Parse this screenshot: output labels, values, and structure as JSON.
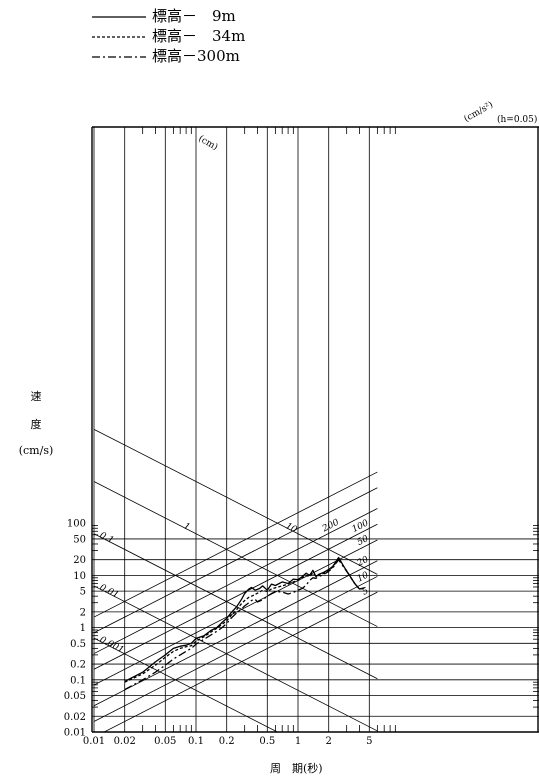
{
  "legend": [
    {
      "label": "標高－　9m",
      "dash": ""
    },
    {
      "label": "標高－　34m",
      "dash": "3,2"
    },
    {
      "label": "標高－300m",
      "dash": "8,3,2,3"
    }
  ],
  "axis": {
    "ylabel_lines": [
      "速",
      "度",
      "(cm/s)"
    ],
    "xlabel": "周　期(秒)",
    "x_ticks": [
      {
        "v": 0.01,
        "t": "0.01"
      },
      {
        "v": 0.02,
        "t": "0.02"
      },
      {
        "v": 0.05,
        "t": "0.05"
      },
      {
        "v": 0.1,
        "t": "0.1"
      },
      {
        "v": 0.2,
        "t": "0.2"
      },
      {
        "v": 0.5,
        "t": "0.5"
      },
      {
        "v": 1,
        "t": "1"
      },
      {
        "v": 2,
        "t": "2"
      },
      {
        "v": 5,
        "t": "5"
      }
    ],
    "y_ticks": [
      {
        "v": 0.01,
        "t": "0.01"
      },
      {
        "v": 0.02,
        "t": "0.02"
      },
      {
        "v": 0.05,
        "t": "0.05"
      },
      {
        "v": 0.1,
        "t": "0.1"
      },
      {
        "v": 0.2,
        "t": "0.2"
      },
      {
        "v": 0.5,
        "t": "0.5"
      },
      {
        "v": 1,
        "t": "1"
      },
      {
        "v": 2,
        "t": "2"
      },
      {
        "v": 5,
        "t": "5"
      },
      {
        "v": 10,
        "t": "10"
      },
      {
        "v": 20,
        "t": "20"
      },
      {
        "v": 50,
        "t": "50"
      },
      {
        "v": 100,
        "t": "100"
      }
    ]
  },
  "tripartite": {
    "disp_unit": "(cm)",
    "acc_unit": "(cm/s²)",
    "damping": "(h=0.05)",
    "disp_lines": [
      {
        "v": 10,
        "t": "10"
      },
      {
        "v": 1,
        "t": "1"
      },
      {
        "v": 0.1,
        "t": "0.1"
      },
      {
        "v": 0.01,
        "t": "0.01"
      },
      {
        "v": 0.001,
        "t": "0.001"
      }
    ],
    "acc_lines": [
      {
        "v": 1000,
        "t": ""
      },
      {
        "v": 500,
        "t": ""
      },
      {
        "v": 200,
        "t": "200"
      },
      {
        "v": 100,
        "t": "100"
      },
      {
        "v": 50,
        "t": "50"
      },
      {
        "v": 20,
        "t": "20"
      },
      {
        "v": 10,
        "t": "10"
      },
      {
        "v": 5,
        "t": "5"
      }
    ]
  },
  "chart_data": {
    "type": "line",
    "xlabel": "周　期(秒)",
    "ylabel": "速度 (cm/s)",
    "x_scale": "log",
    "y_scale": "log",
    "xlim": [
      0.01,
      6
    ],
    "ylim": [
      0.01,
      100
    ],
    "grid": true,
    "legend_position": "top-left",
    "series": [
      {
        "name": "標高－　9m",
        "points": [
          [
            0.02,
            0.093
          ],
          [
            0.03,
            0.14
          ],
          [
            0.04,
            0.22
          ],
          [
            0.05,
            0.3
          ],
          [
            0.06,
            0.4
          ],
          [
            0.07,
            0.44
          ],
          [
            0.08,
            0.46
          ],
          [
            0.09,
            0.5
          ],
          [
            0.1,
            0.62
          ],
          [
            0.12,
            0.7
          ],
          [
            0.14,
            0.88
          ],
          [
            0.16,
            1.0
          ],
          [
            0.18,
            1.25
          ],
          [
            0.2,
            1.5
          ],
          [
            0.22,
            1.9
          ],
          [
            0.25,
            2.5
          ],
          [
            0.28,
            3.5
          ],
          [
            0.3,
            4.5
          ],
          [
            0.33,
            5.5
          ],
          [
            0.35,
            5.9
          ],
          [
            0.38,
            5.2
          ],
          [
            0.42,
            5.6
          ],
          [
            0.45,
            6.3
          ],
          [
            0.5,
            5.2
          ],
          [
            0.55,
            6.8
          ],
          [
            0.6,
            6.4
          ],
          [
            0.7,
            7.5
          ],
          [
            0.8,
            7.0
          ],
          [
            0.9,
            8.5
          ],
          [
            1.0,
            8.3
          ],
          [
            1.1,
            9.5
          ],
          [
            1.2,
            11.0
          ],
          [
            1.3,
            10.0
          ],
          [
            1.4,
            12.5
          ],
          [
            1.5,
            9.5
          ],
          [
            1.6,
            10.5
          ],
          [
            1.8,
            11.5
          ],
          [
            2.0,
            13.0
          ],
          [
            2.2,
            15.0
          ],
          [
            2.5,
            22.0
          ],
          [
            2.8,
            15.0
          ],
          [
            3.2,
            10.0
          ],
          [
            3.6,
            7.0
          ],
          [
            4.0,
            5.5
          ],
          [
            4.5,
            5.8
          ]
        ]
      },
      {
        "name": "標高－　34m",
        "points": [
          [
            0.02,
            0.09
          ],
          [
            0.03,
            0.13
          ],
          [
            0.04,
            0.19
          ],
          [
            0.05,
            0.27
          ],
          [
            0.06,
            0.35
          ],
          [
            0.07,
            0.4
          ],
          [
            0.08,
            0.43
          ],
          [
            0.09,
            0.45
          ],
          [
            0.1,
            0.55
          ],
          [
            0.12,
            0.67
          ],
          [
            0.14,
            0.82
          ],
          [
            0.16,
            0.97
          ],
          [
            0.18,
            1.15
          ],
          [
            0.2,
            1.35
          ],
          [
            0.22,
            1.7
          ],
          [
            0.25,
            2.2
          ],
          [
            0.28,
            2.9
          ],
          [
            0.3,
            3.3
          ],
          [
            0.33,
            3.8
          ],
          [
            0.35,
            4.0
          ],
          [
            0.38,
            4.3
          ],
          [
            0.42,
            4.8
          ],
          [
            0.45,
            5.2
          ],
          [
            0.5,
            4.9
          ],
          [
            0.55,
            5.5
          ],
          [
            0.6,
            5.8
          ],
          [
            0.7,
            6.3
          ],
          [
            0.8,
            6.8
          ],
          [
            0.9,
            7.5
          ],
          [
            1.0,
            8.0
          ],
          [
            1.1,
            9.0
          ],
          [
            1.2,
            10.0
          ],
          [
            1.3,
            9.5
          ],
          [
            1.4,
            11.0
          ],
          [
            1.5,
            9.6
          ],
          [
            1.6,
            10.0
          ],
          [
            1.8,
            11.0
          ],
          [
            2.0,
            12.5
          ],
          [
            2.2,
            14.5
          ],
          [
            2.5,
            21.0
          ],
          [
            2.8,
            15.0
          ],
          [
            3.2,
            10.0
          ],
          [
            3.6,
            7.0
          ],
          [
            4.0,
            5.5
          ],
          [
            4.5,
            5.7
          ]
        ]
      },
      {
        "name": "標高－300m",
        "points": [
          [
            0.02,
            0.065
          ],
          [
            0.03,
            0.1
          ],
          [
            0.04,
            0.14
          ],
          [
            0.05,
            0.19
          ],
          [
            0.06,
            0.25
          ],
          [
            0.07,
            0.3
          ],
          [
            0.08,
            0.35
          ],
          [
            0.09,
            0.4
          ],
          [
            0.1,
            0.48
          ],
          [
            0.12,
            0.6
          ],
          [
            0.14,
            0.72
          ],
          [
            0.16,
            0.85
          ],
          [
            0.18,
            1.0
          ],
          [
            0.2,
            1.2
          ],
          [
            0.22,
            1.5
          ],
          [
            0.25,
            1.9
          ],
          [
            0.28,
            2.3
          ],
          [
            0.3,
            2.6
          ],
          [
            0.33,
            3.0
          ],
          [
            0.35,
            3.3
          ],
          [
            0.38,
            3.5
          ],
          [
            0.4,
            3.1
          ],
          [
            0.45,
            3.4
          ],
          [
            0.5,
            4.0
          ],
          [
            0.55,
            4.5
          ],
          [
            0.6,
            4.9
          ],
          [
            0.7,
            4.8
          ],
          [
            0.8,
            4.4
          ],
          [
            0.9,
            4.7
          ],
          [
            1.0,
            5.2
          ],
          [
            1.1,
            5.6
          ],
          [
            1.2,
            6.5
          ],
          [
            1.3,
            8.0
          ],
          [
            1.4,
            9.0
          ],
          [
            1.5,
            8.8
          ],
          [
            1.6,
            9.5
          ],
          [
            1.8,
            10.5
          ],
          [
            2.0,
            12.0
          ],
          [
            2.2,
            14.0
          ],
          [
            2.5,
            20.0
          ],
          [
            2.8,
            14.5
          ],
          [
            3.2,
            10.0
          ],
          [
            3.6,
            7.0
          ],
          [
            4.0,
            5.5
          ],
          [
            4.5,
            5.6
          ]
        ]
      }
    ]
  }
}
